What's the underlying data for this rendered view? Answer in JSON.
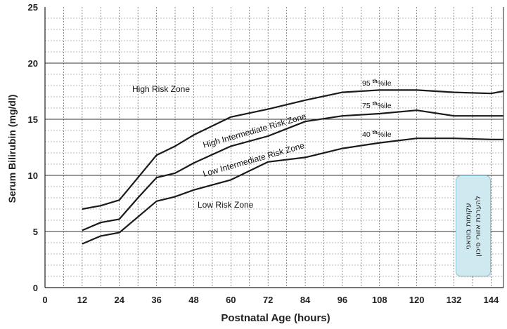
{
  "chart_data": {
    "type": "line",
    "title": "",
    "xlabel": "Postnatal Age (hours)",
    "ylabel": "Serum Bilirubin (mg/dl)",
    "xlim": [
      0,
      148
    ],
    "ylim": [
      0,
      25
    ],
    "xticks": [
      "0",
      "12",
      "24",
      "36",
      "48",
      "60",
      "72",
      "84",
      "96",
      "108",
      "120",
      "132",
      "144"
    ],
    "yticks": [
      "0",
      "5",
      "10",
      "15",
      "20",
      "25"
    ],
    "grid": true,
    "series": [
      {
        "name": "95 th%ile",
        "x": [
          12,
          18,
          24,
          30,
          36,
          42,
          48,
          60,
          72,
          84,
          96,
          108,
          120,
          132,
          144,
          148
        ],
        "y": [
          7.0,
          7.3,
          7.8,
          9.8,
          11.8,
          12.6,
          13.6,
          15.2,
          15.9,
          16.7,
          17.4,
          17.6,
          17.6,
          17.4,
          17.3,
          17.5
        ]
      },
      {
        "name": "75 th%ile",
        "x": [
          12,
          18,
          24,
          30,
          36,
          42,
          48,
          60,
          72,
          84,
          96,
          108,
          120,
          132,
          144,
          148
        ],
        "y": [
          5.1,
          5.8,
          6.1,
          8.0,
          9.8,
          10.2,
          11.1,
          12.6,
          13.5,
          14.8,
          15.3,
          15.5,
          15.8,
          15.3,
          15.3,
          15.3
        ]
      },
      {
        "name": "40 th%ile",
        "x": [
          12,
          18,
          24,
          30,
          36,
          42,
          48,
          60,
          72,
          84,
          96,
          108,
          120,
          132,
          144,
          148
        ],
        "y": [
          3.9,
          4.6,
          4.9,
          6.3,
          7.7,
          8.1,
          8.7,
          9.6,
          11.2,
          11.6,
          12.4,
          12.9,
          13.3,
          13.3,
          13.2,
          13.2
        ]
      }
    ],
    "zone_labels": [
      "High Risk Zone",
      "High Intermediate Risk Zone",
      "Low Intermediate Risk Zone",
      "Low Risk Zone"
    ],
    "percentile_labels": [
      {
        "num": "95",
        "sup": "th",
        "rest": "%ile"
      },
      {
        "num": "75",
        "sup": "th",
        "rest": "%ile"
      },
      {
        "num": "40",
        "sup": "th",
        "rest": "%ile"
      }
    ]
  },
  "note": {
    "text": "עקומות בוטאני\nלהערכת אזורי סיכון"
  }
}
